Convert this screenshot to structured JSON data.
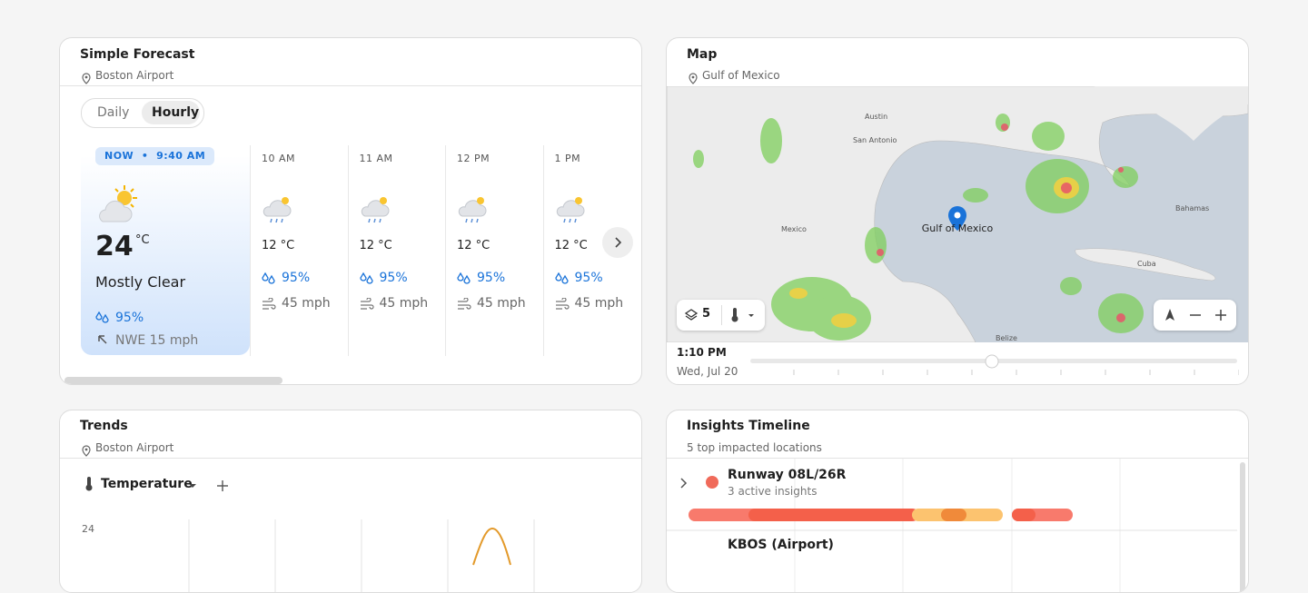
{
  "forecast": {
    "title": "Simple Forecast",
    "location": "Boston Airport",
    "tabs": [
      "Daily",
      "Hourly"
    ],
    "now": {
      "label": "NOW",
      "time": "9:40 AM",
      "temperature": "24",
      "unit": "°C",
      "condition": "Mostly Clear",
      "precipitation": "95%",
      "wind": "NWE 15 mph"
    },
    "hours": [
      {
        "time": "10 AM",
        "temperature": "12 °C",
        "precipitation": "95%",
        "wind": "45 mph"
      },
      {
        "time": "11 AM",
        "temperature": "12 °C",
        "precipitation": "95%",
        "wind": "45 mph"
      },
      {
        "time": "12 PM",
        "temperature": "12 °C",
        "precipitation": "95%",
        "wind": "45 mph"
      },
      {
        "time": "1 PM",
        "temperature": "12 °C",
        "precipitation": "95%",
        "wind": "45 mph"
      }
    ]
  },
  "map": {
    "title": "Map",
    "location": "Gulf of Mexico",
    "pin_label": "Gulf of Mexico",
    "places": [
      "Austin",
      "San Antonio",
      "Mexico",
      "Cuba",
      "Bahamas",
      "Belize"
    ],
    "layers": "5",
    "time": "1:10 PM",
    "date": "Wed, Jul 20"
  },
  "trends": {
    "title": "Trends",
    "location": "Boston Airport",
    "metric": "Temperature",
    "axis_label": "24"
  },
  "insights": {
    "title": "Insights Timeline",
    "subtitle": "5 top impacted locations",
    "rows": [
      {
        "name": "Runway 08L/26R",
        "detail": "3 active insights"
      },
      {
        "name": "KBOS (Airport)"
      }
    ]
  }
}
